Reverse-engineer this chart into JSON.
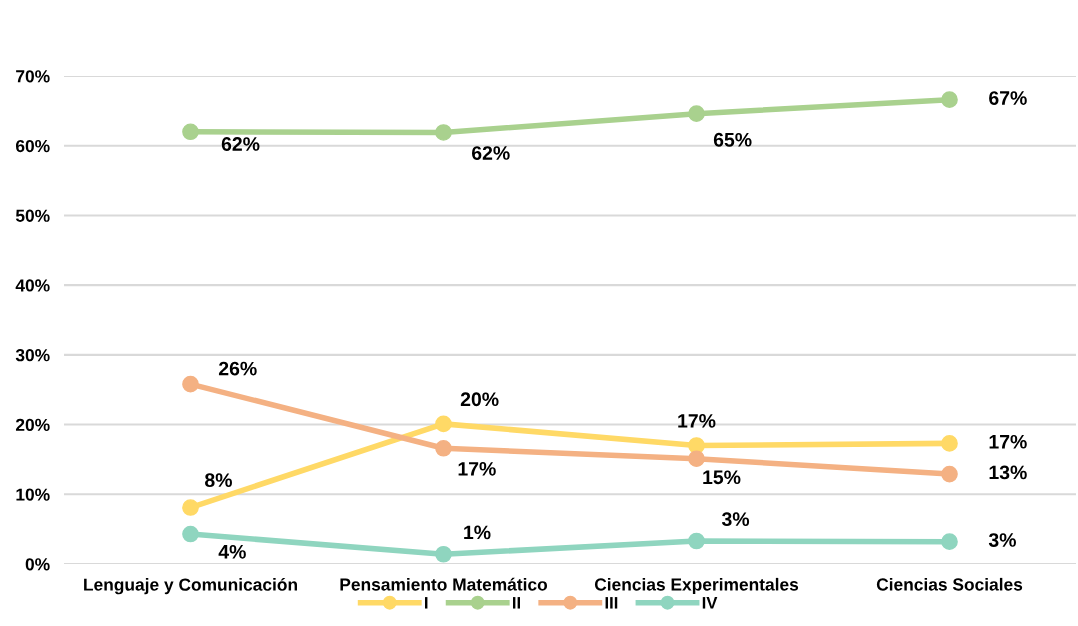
{
  "chart_data": {
    "type": "line",
    "categories": [
      "Lenguaje y Comunicación",
      "Pensamiento Matemático",
      "Ciencias Experimentales",
      "Ciencias Sociales"
    ],
    "series": [
      {
        "name": "I",
        "color": "#FFD966",
        "values": [
          8.1,
          20.1,
          17.0,
          17.3
        ],
        "value_labels": [
          "8%",
          "20%",
          "17%",
          "17%"
        ]
      },
      {
        "name": "II",
        "color": "#A9D18E",
        "values": [
          62.0,
          61.9,
          64.6,
          66.6
        ],
        "value_labels": [
          "62%",
          "62%",
          "65%",
          "67%"
        ]
      },
      {
        "name": "III",
        "color": "#F4B183",
        "values": [
          25.8,
          16.6,
          15.1,
          12.9
        ],
        "value_labels": [
          "26%",
          "17%",
          "15%",
          "13%"
        ]
      },
      {
        "name": "IV",
        "color": "#8FD5BF",
        "values": [
          4.3,
          1.4,
          3.3,
          3.2
        ],
        "value_labels": [
          "4%",
          "1%",
          "3%",
          "3%"
        ]
      }
    ],
    "ylim": [
      0,
      70
    ],
    "yticks": [
      {
        "value": 0,
        "label": "0%"
      },
      {
        "value": 10,
        "label": "10%"
      },
      {
        "value": 20,
        "label": "20%"
      },
      {
        "value": 30,
        "label": "30%"
      },
      {
        "value": 40,
        "label": "40%"
      },
      {
        "value": 50,
        "label": "50%"
      },
      {
        "value": 60,
        "label": "60%"
      },
      {
        "value": 70,
        "label": "70%"
      }
    ],
    "grid": "y",
    "legend": "bottom",
    "marker": "circle",
    "line_style": "solid"
  }
}
